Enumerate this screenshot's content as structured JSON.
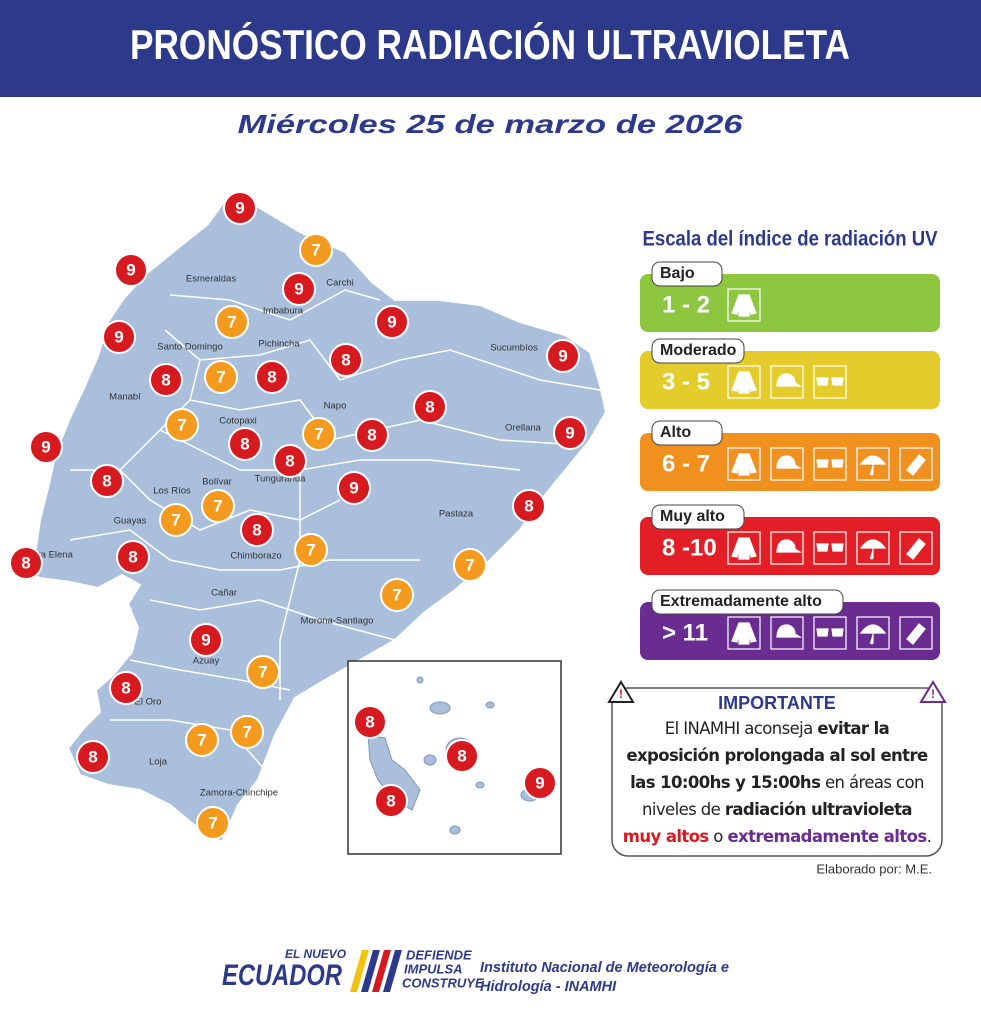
{
  "header": {
    "title": "PRONÓSTICO RADIACIÓN ULTRAVIOLETA",
    "date": "Miércoles 25 de marzo de 2026"
  },
  "map": {
    "provinces": [
      "Esmeraldas",
      "Carchi",
      "Imbabura",
      "Santo Domingo",
      "Pichincha",
      "Sucumbíos",
      "Manabí",
      "Napo",
      "Cotopaxi",
      "Orellana",
      "Los Ríos",
      "Bolívar",
      "Tungurahua",
      "Guayas",
      "Pastaza",
      "Santa Elena",
      "Chimborazo",
      "Cañar",
      "Morona-Santiago",
      "Azuay",
      "El Oro",
      "Loja",
      "Zamora-Chinchipe"
    ],
    "uv_values": [
      9,
      7,
      9,
      9,
      7,
      9,
      9,
      8,
      9,
      7,
      8,
      8,
      8,
      7,
      8,
      7,
      8,
      9,
      9,
      8,
      8,
      9,
      7,
      8,
      7,
      8,
      7,
      8,
      8,
      7,
      7,
      9,
      7,
      8,
      7,
      7,
      8,
      7
    ],
    "galapagos_uv_values": [
      8,
      8,
      8,
      9
    ]
  },
  "scale": {
    "title": "Escala del índice de radiación UV",
    "levels": [
      {
        "name": "Bajo",
        "range": "1 - 2",
        "color": "#8dc63f"
      },
      {
        "name": "Moderado",
        "range": "3 - 5",
        "color": "#e3cc2c"
      },
      {
        "name": "Alto",
        "range": "6 - 7",
        "color": "#f0901e"
      },
      {
        "name": "Muy alto",
        "range": "8 -10",
        "color": "#e21f26"
      },
      {
        "name": "Extremadamente alto",
        "range": "> 11",
        "color": "#6a2c91"
      }
    ]
  },
  "important": {
    "title": "IMPORTANTE",
    "segments": [
      "El INAMHI aconseja ",
      "evitar la exposición prolongada al sol entre las 10:00hs y 15:00hs",
      " en áreas con niveles de ",
      "radiación ultravioleta ",
      "muy altos",
      " o ",
      "extremadamente altos",
      "."
    ]
  },
  "credit": "Elaborado por: M.E.",
  "footer": {
    "logo_top": "EL NUEVO",
    "logo_main": "ECUADOR",
    "slogan": [
      "DEFIENDE",
      "IMPULSA",
      "CONSTRUYE"
    ],
    "institute_line1": "Instituto Nacional de Meteorología e",
    "institute_line2": "Hidrología - INAMHI"
  }
}
